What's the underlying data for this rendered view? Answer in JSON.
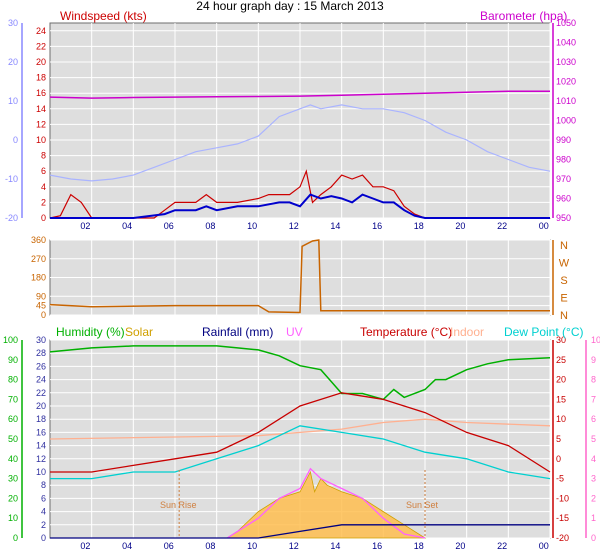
{
  "title": "24 hour graph day : 15 March 2013",
  "colors": {
    "plot_bg": "#dedede",
    "grid": "#ffffff",
    "frame": "#6d6d6d",
    "windspeed": "#cc0000",
    "avg_wind": "#0000cc",
    "barometer": "#cc00cc",
    "gust_temp": "#aab4ff",
    "winddir": "#c86400",
    "humidity": "#00b000",
    "solar": "#d0a000",
    "solar_fill": "#ffbe50",
    "rainfall": "#000080",
    "uv": "#ff60ff",
    "temperature": "#c80000",
    "indoor": "#ffb090",
    "dewpoint": "#00d0d0",
    "left_axis_wind": "#8888ff",
    "left_axis_hum": "#00b000",
    "right_axis_temp": "#ff66cc"
  },
  "chart_data": [
    {
      "id": "wind",
      "type": "line",
      "x_labels": [
        "02",
        "04",
        "06",
        "08",
        "10",
        "12",
        "14",
        "16",
        "18",
        "20",
        "22",
        "00"
      ],
      "xlim": [
        0,
        24
      ],
      "left_label": "Windspeed (kts)",
      "right_label": "Barometer (hpa)",
      "ylim": [
        0,
        25
      ],
      "y2lim": [
        950,
        1050
      ],
      "y_ticks": [
        0,
        2,
        4,
        6,
        8,
        10,
        12,
        14,
        16,
        18,
        20,
        22,
        24
      ],
      "y2_ticks": [
        950,
        960,
        970,
        980,
        990,
        1000,
        1010,
        1020,
        1030,
        1040,
        1050
      ],
      "outer_ticks": [
        -20,
        -10,
        0,
        10,
        20,
        30
      ],
      "outer_ylim": [
        -20,
        30
      ],
      "series": [
        {
          "key": "barometer",
          "axis": "y2",
          "points": [
            [
              0,
              1012
            ],
            [
              2,
              1011.5
            ],
            [
              4,
              1011.8
            ],
            [
              6,
              1012
            ],
            [
              8,
              1012.2
            ],
            [
              10,
              1012.3
            ],
            [
              12,
              1012.5
            ],
            [
              14,
              1013
            ],
            [
              16,
              1013.5
            ],
            [
              18,
              1014
            ],
            [
              20,
              1014.5
            ],
            [
              22,
              1015
            ],
            [
              24,
              1015
            ]
          ]
        },
        {
          "key": "gust_temp",
          "axis": "outer",
          "points": [
            [
              0,
              -9
            ],
            [
              1,
              -10
            ],
            [
              2,
              -10.5
            ],
            [
              3,
              -10
            ],
            [
              4,
              -9
            ],
            [
              5,
              -7
            ],
            [
              6,
              -5
            ],
            [
              7,
              -3
            ],
            [
              8,
              -2
            ],
            [
              9,
              -1
            ],
            [
              10,
              1
            ],
            [
              11,
              6
            ],
            [
              12,
              8
            ],
            [
              12.5,
              9
            ],
            [
              13,
              8
            ],
            [
              14,
              9
            ],
            [
              15,
              8
            ],
            [
              16,
              8
            ],
            [
              17,
              7
            ],
            [
              18,
              5
            ],
            [
              19,
              2
            ],
            [
              20,
              0
            ],
            [
              21,
              -3
            ],
            [
              22,
              -5
            ],
            [
              23,
              -7
            ],
            [
              24,
              -8
            ]
          ]
        },
        {
          "key": "windspeed",
          "axis": "y",
          "points": [
            [
              0,
              0
            ],
            [
              0.5,
              0.3
            ],
            [
              1,
              3
            ],
            [
              1.5,
              2
            ],
            [
              2,
              0
            ],
            [
              4,
              0
            ],
            [
              5,
              0
            ],
            [
              5.5,
              1
            ],
            [
              6,
              2
            ],
            [
              7,
              2
            ],
            [
              7.5,
              3
            ],
            [
              8,
              2
            ],
            [
              9,
              2
            ],
            [
              10,
              2.5
            ],
            [
              10.5,
              3
            ],
            [
              11,
              3
            ],
            [
              11.5,
              3
            ],
            [
              12,
              4
            ],
            [
              12.3,
              6
            ],
            [
              12.6,
              2
            ],
            [
              13,
              3
            ],
            [
              13.5,
              4
            ],
            [
              14,
              5.5
            ],
            [
              14.5,
              5
            ],
            [
              15,
              5.5
            ],
            [
              15.5,
              4
            ],
            [
              16,
              4
            ],
            [
              16.5,
              3.5
            ],
            [
              17,
              1.5
            ],
            [
              17.5,
              0.5
            ],
            [
              18,
              0
            ],
            [
              24,
              0
            ]
          ]
        },
        {
          "key": "avg_wind",
          "axis": "y",
          "points": [
            [
              0,
              0
            ],
            [
              4,
              0
            ],
            [
              5.5,
              0.5
            ],
            [
              6,
              1
            ],
            [
              7,
              1
            ],
            [
              7.5,
              1.5
            ],
            [
              8,
              1
            ],
            [
              9,
              1.5
            ],
            [
              10,
              1.5
            ],
            [
              11,
              2
            ],
            [
              11.5,
              2
            ],
            [
              12,
              1.5
            ],
            [
              12.5,
              3
            ],
            [
              13,
              2.5
            ],
            [
              13.5,
              2.8
            ],
            [
              14,
              2.5
            ],
            [
              14.5,
              2
            ],
            [
              15,
              3
            ],
            [
              15.5,
              2.5
            ],
            [
              16,
              2
            ],
            [
              16.5,
              2
            ],
            [
              17,
              1
            ],
            [
              17.5,
              0.3
            ],
            [
              18,
              0
            ],
            [
              24,
              0
            ]
          ]
        }
      ]
    },
    {
      "id": "direction",
      "type": "line",
      "xlim": [
        0,
        24
      ],
      "ylim": [
        0,
        360
      ],
      "y_ticks": [
        0,
        45,
        90,
        180,
        270,
        360
      ],
      "compass": [
        "N",
        "W",
        "S",
        "E",
        "N"
      ],
      "series": [
        {
          "key": "winddir",
          "points": [
            [
              0,
              50
            ],
            [
              2,
              40
            ],
            [
              6,
              45
            ],
            [
              10,
              45
            ],
            [
              10.5,
              15
            ],
            [
              12,
              12
            ],
            [
              12.1,
              330
            ],
            [
              12.6,
              355
            ],
            [
              12.9,
              360
            ],
            [
              13,
              20
            ],
            [
              14,
              20
            ],
            [
              18,
              20
            ],
            [
              20,
              20
            ],
            [
              24,
              20
            ]
          ]
        }
      ]
    },
    {
      "id": "env",
      "type": "area",
      "x_labels": [
        "02",
        "04",
        "06",
        "08",
        "10",
        "12",
        "14",
        "16",
        "18",
        "20",
        "22",
        "00"
      ],
      "xlim": [
        0,
        24
      ],
      "ylim": [
        0,
        30
      ],
      "y_ticks": [
        0,
        2,
        4,
        6,
        8,
        10,
        12,
        14,
        16,
        18,
        20,
        22,
        24,
        26,
        28,
        30
      ],
      "hum_ticks": [
        0,
        10,
        20,
        30,
        40,
        50,
        60,
        70,
        80,
        90,
        100
      ],
      "hum_ylim": [
        0,
        100
      ],
      "temp_ticks": [
        -20,
        -15,
        -10,
        -5,
        0,
        5,
        10,
        15,
        20,
        25,
        30
      ],
      "temp_ylim": [
        -20,
        30
      ],
      "uv_ticks": [
        0,
        1,
        2,
        3,
        4,
        5,
        6,
        7,
        8,
        9,
        10
      ],
      "uv_ylim": [
        0,
        10
      ],
      "header": {
        "humidity": "Humidity (%)",
        "solar": "Solar",
        "rainfall": "Rainfall (mm)",
        "uv": "UV",
        "temperature": "Temperature (°C)",
        "indoor": "Indoor",
        "dewpoint": "Dew Point (°C)"
      },
      "annotations": {
        "sunrise": "Sun Rise",
        "sunset": "Sun Set",
        "sunrise_x": 6.2,
        "sunset_x": 18
      },
      "series": [
        {
          "key": "solar_fill",
          "points": [
            [
              8.5,
              0
            ],
            [
              9,
              1
            ],
            [
              10,
              4
            ],
            [
              11,
              6
            ],
            [
              12,
              7
            ],
            [
              12.5,
              10
            ],
            [
              12.7,
              7
            ],
            [
              13,
              9
            ],
            [
              13.3,
              8
            ],
            [
              14,
              7
            ],
            [
              15,
              6
            ],
            [
              16,
              4
            ],
            [
              17,
              2
            ],
            [
              18,
              0
            ]
          ]
        },
        {
          "key": "humidity",
          "points": [
            [
              0,
              94
            ],
            [
              2,
              96
            ],
            [
              4,
              97
            ],
            [
              6,
              97
            ],
            [
              8,
              97
            ],
            [
              9,
              96
            ],
            [
              10,
              95
            ],
            [
              11,
              92
            ],
            [
              12,
              87
            ],
            [
              13,
              85
            ],
            [
              13.5,
              79
            ],
            [
              14,
              73
            ],
            [
              15,
              73
            ],
            [
              16,
              70
            ],
            [
              16.5,
              75
            ],
            [
              17,
              71
            ],
            [
              18,
              75
            ],
            [
              18.5,
              80
            ],
            [
              19,
              80
            ],
            [
              20,
              85
            ],
            [
              21,
              88
            ],
            [
              22,
              90
            ],
            [
              24,
              91
            ]
          ]
        },
        {
          "key": "indoor",
          "points": [
            [
              0,
              15
            ],
            [
              6,
              15.3
            ],
            [
              10,
              15.5
            ],
            [
              14,
              16.5
            ],
            [
              16,
              17.5
            ],
            [
              18,
              18
            ],
            [
              20,
              17.5
            ],
            [
              24,
              17
            ]
          ]
        },
        {
          "key": "temperature",
          "points": [
            [
              0,
              5
            ],
            [
              2,
              5
            ],
            [
              4,
              5.5
            ],
            [
              6,
              6
            ],
            [
              8,
              6.5
            ],
            [
              10,
              8
            ],
            [
              12,
              10
            ],
            [
              14,
              11
            ],
            [
              16,
              10.5
            ],
            [
              18,
              9.5
            ],
            [
              20,
              8
            ],
            [
              22,
              7
            ],
            [
              24,
              5
            ]
          ]
        },
        {
          "key": "dewpoint",
          "points": [
            [
              0,
              4.5
            ],
            [
              2,
              4.5
            ],
            [
              4,
              5
            ],
            [
              6,
              5
            ],
            [
              8,
              6
            ],
            [
              10,
              7
            ],
            [
              12,
              8.5
            ],
            [
              14,
              8
            ],
            [
              16,
              7.5
            ],
            [
              18,
              6.5
            ],
            [
              20,
              6
            ],
            [
              22,
              5
            ],
            [
              24,
              4.5
            ]
          ]
        },
        {
          "key": "uv",
          "points": [
            [
              8.5,
              0
            ],
            [
              10,
              1
            ],
            [
              11,
              2
            ],
            [
              12,
              2.5
            ],
            [
              12.5,
              3.5
            ],
            [
              13,
              3
            ],
            [
              14,
              2.5
            ],
            [
              15,
              2
            ],
            [
              16,
              1
            ],
            [
              17,
              0.2
            ],
            [
              18,
              0
            ]
          ]
        },
        {
          "key": "rainfall",
          "points": [
            [
              0,
              0
            ],
            [
              10,
              0
            ],
            [
              12,
              1
            ],
            [
              14,
              2
            ],
            [
              16,
              2
            ],
            [
              24,
              2
            ]
          ]
        }
      ]
    }
  ]
}
